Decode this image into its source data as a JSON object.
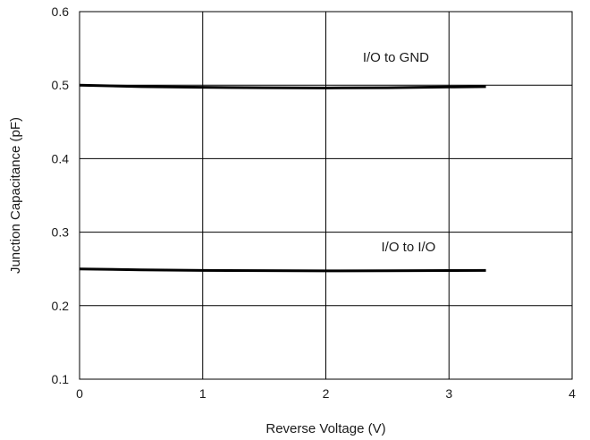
{
  "chart_data": {
    "type": "line",
    "title": "",
    "xlabel": "Reverse Voltage (V)",
    "ylabel": "Junction Capacitance (pF)",
    "xlim": [
      0,
      4
    ],
    "ylim": [
      0.1,
      0.6
    ],
    "x_ticks": [
      0,
      1,
      2,
      3,
      4
    ],
    "x_tick_labels": [
      "0",
      "1",
      "2",
      "3",
      "4"
    ],
    "y_ticks": [
      0.1,
      0.2,
      0.3,
      0.4,
      0.5,
      0.6
    ],
    "y_tick_labels": [
      "0.1",
      "0.2",
      "0.3",
      "0.4",
      "0.5",
      "0.6"
    ],
    "grid": true,
    "legend": "none",
    "series": [
      {
        "name": "I/O to GND",
        "color": "#000000",
        "x": [
          0,
          0.5,
          1,
          1.5,
          2,
          2.5,
          3,
          3.3
        ],
        "y": [
          0.5,
          0.498,
          0.497,
          0.4965,
          0.4962,
          0.4965,
          0.4975,
          0.498
        ]
      },
      {
        "name": "I/O to I/O",
        "color": "#000000",
        "x": [
          0,
          0.5,
          1,
          1.5,
          2,
          2.5,
          3,
          3.3
        ],
        "y": [
          0.25,
          0.2488,
          0.248,
          0.2476,
          0.2474,
          0.2475,
          0.2478,
          0.248
        ]
      }
    ],
    "annotations": [
      {
        "text": "I/O to GND",
        "x": 2.3,
        "y": 0.532
      },
      {
        "text": "I/O to I/O",
        "x": 2.45,
        "y": 0.274
      }
    ]
  }
}
